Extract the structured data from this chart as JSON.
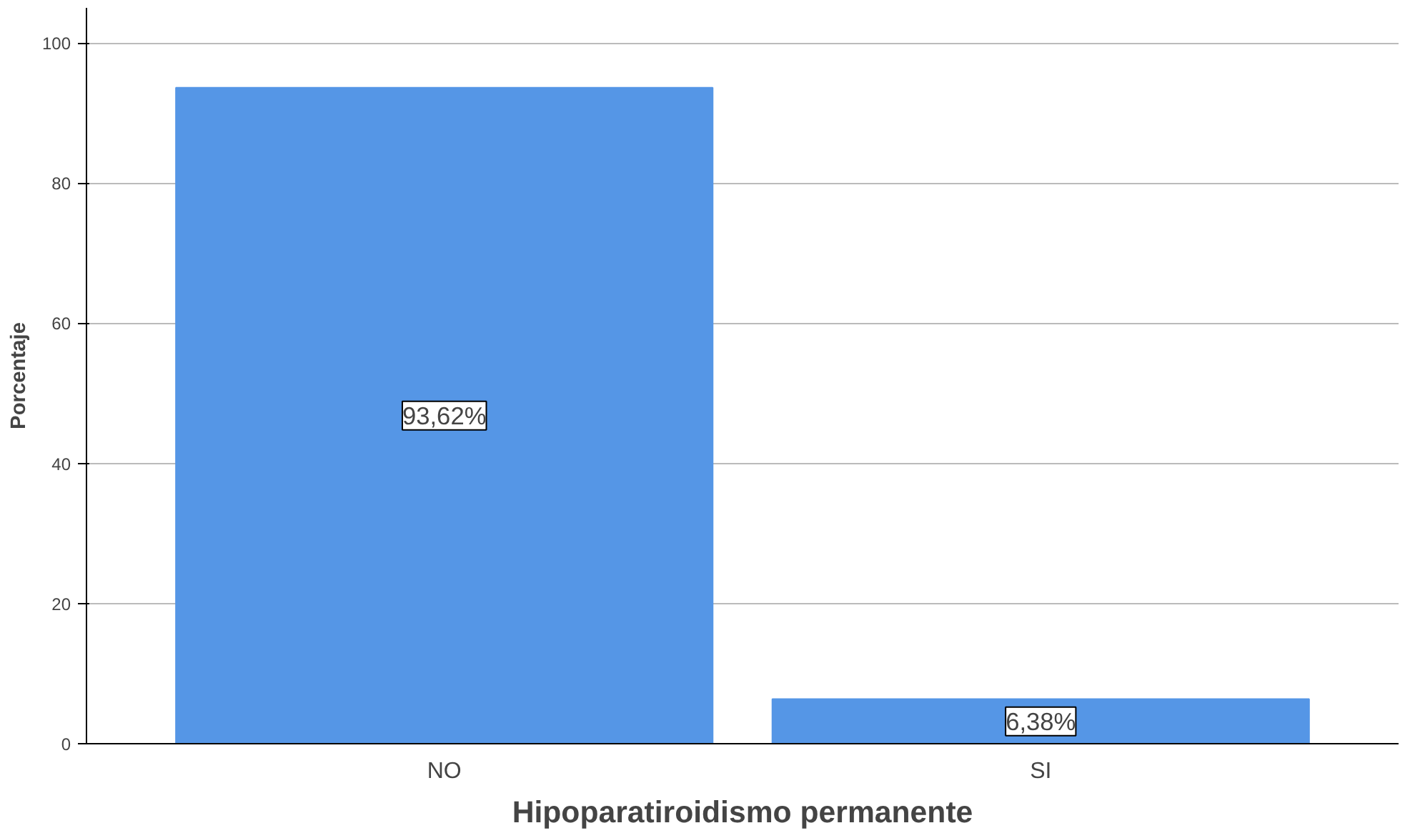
{
  "chart_data": {
    "type": "bar",
    "xlabel": "Hipoparatiroidismo permanente",
    "ylabel": "Porcentaje",
    "categories": [
      "NO",
      "SI"
    ],
    "values": [
      93.62,
      6.38
    ],
    "value_labels": [
      "93,62%",
      "6,38%"
    ],
    "color": "#5596e6",
    "ylim": [
      0,
      105
    ],
    "yticks": [
      0,
      20,
      40,
      60,
      80,
      100
    ],
    "grid": "y"
  }
}
